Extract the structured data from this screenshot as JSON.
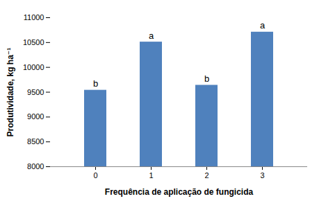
{
  "chart_data": {
    "type": "bar",
    "x_label": "Frequência de aplicação de fungicida",
    "y_label": "Produtividade, kg ha⁻¹",
    "categories": [
      "0",
      "1",
      "2",
      "3"
    ],
    "values": [
      9540,
      10510,
      9640,
      10710
    ],
    "annotations": [
      "b",
      "a",
      "b",
      "a"
    ],
    "color": "#4f81bd",
    "ylim": [
      8000,
      11000
    ],
    "yticks": [
      8000,
      8500,
      9000,
      9500,
      10000,
      10500,
      11000
    ],
    "grid": false
  }
}
